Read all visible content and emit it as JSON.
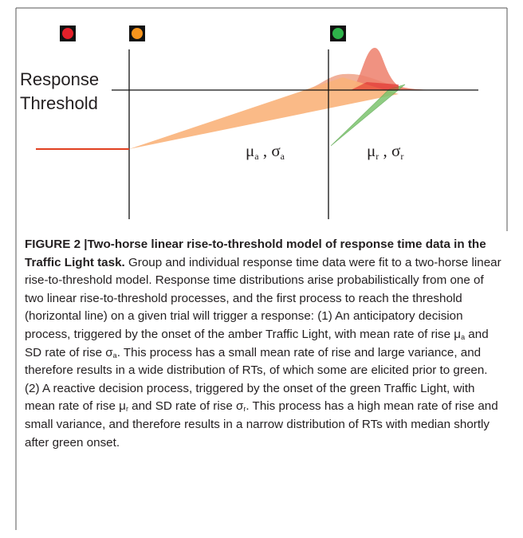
{
  "figure": {
    "threshold_label": [
      "Response",
      "Threshold"
    ],
    "anticipatory": {
      "mu": "μ",
      "mu_sub": "a",
      "sep": " , ",
      "sigma": "σ",
      "sigma_sub": "a"
    },
    "reactive": {
      "mu": "μ",
      "mu_sub": "r",
      "sep": " , ",
      "sigma": "σ",
      "sigma_sub": "r"
    }
  },
  "caption": {
    "label": "FIGURE 2 |",
    "title": "Two-horse linear rise-to-threshold model of response time data in the Traffic Light task.",
    "body": [
      "Group and individual response time data were fit to a two-horse linear rise-to-threshold model. Response time distributions arise probabilistically from one of two linear rise-to-threshold processes, and the first process to reach the threshold (horizontal line) on a given trial will trigger a response: (1) An anticipatory decision process, triggered by the onset of the amber Traffic Light, with mean rate of rise μ",
      "a",
      " and SD rate of rise σ",
      "a",
      ". This process has a small mean rate of rise and large variance, and therefore results in a wide distribution of RTs, of which some are elicited prior to green. (2) A reactive decision process, triggered by the onset of the green Traffic Light, with mean rate of rise μ",
      "r",
      " and SD rate of rise σ",
      "r",
      ". This process has a high mean rate of rise and small variance, and therefore results in a narrow distribution of RTs with median shortly after green onset."
    ]
  }
}
